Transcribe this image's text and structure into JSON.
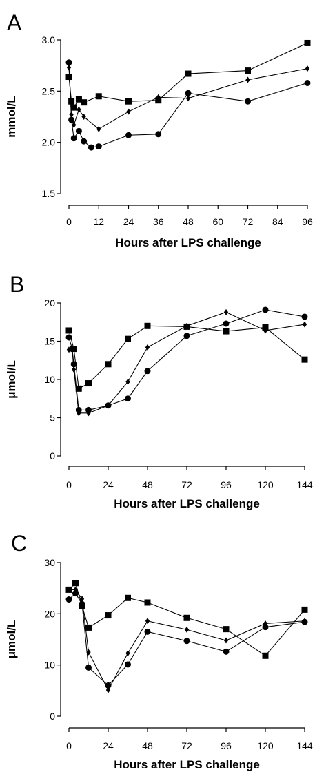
{
  "chart_data": [
    {
      "panel": "A",
      "type": "line",
      "xlabel": "Hours after LPS challenge",
      "ylabel": "mmol/L",
      "xlim": [
        0,
        96
      ],
      "ylim": [
        1.5,
        3.0
      ],
      "xticks": [
        0,
        12,
        24,
        36,
        48,
        60,
        72,
        84,
        96
      ],
      "yticks": [
        1.5,
        2.0,
        2.5,
        3.0
      ],
      "ytick_labels": [
        "1.5",
        "2.0",
        "2.5",
        "3.0"
      ],
      "grid": false,
      "series": [
        {
          "marker": "square",
          "x": [
            0,
            1,
            2,
            4,
            6,
            12,
            24,
            36,
            48,
            72,
            96
          ],
          "y": [
            2.64,
            2.4,
            2.34,
            2.42,
            2.39,
            2.45,
            2.4,
            2.41,
            2.67,
            2.7,
            2.97
          ]
        },
        {
          "marker": "diamond",
          "x": [
            0,
            1,
            2,
            4,
            6,
            12,
            24,
            36,
            48,
            72,
            96
          ],
          "y": [
            2.73,
            2.27,
            2.17,
            2.32,
            2.25,
            2.13,
            2.3,
            2.44,
            2.43,
            2.61,
            2.72
          ]
        },
        {
          "marker": "circle",
          "x": [
            0,
            1,
            2,
            4,
            6,
            9,
            12,
            24,
            36,
            48,
            72,
            96
          ],
          "y": [
            2.78,
            2.22,
            2.04,
            2.11,
            2.01,
            1.95,
            1.96,
            2.07,
            2.08,
            2.48,
            2.4,
            2.58
          ]
        }
      ]
    },
    {
      "panel": "B",
      "type": "line",
      "xlabel": "Hours after LPS challenge",
      "ylabel": "μmol/L",
      "xlim": [
        0,
        144
      ],
      "ylim": [
        0,
        20
      ],
      "xticks": [
        0,
        24,
        48,
        72,
        96,
        120,
        144
      ],
      "yticks": [
        0,
        5,
        10,
        15,
        20
      ],
      "ytick_labels": [
        "0",
        "5",
        "10",
        "15",
        "20"
      ],
      "grid": false,
      "series": [
        {
          "marker": "square",
          "x": [
            0,
            3,
            6,
            12,
            24,
            36,
            48,
            72,
            96,
            120,
            144
          ],
          "y": [
            16.4,
            14.0,
            8.8,
            9.5,
            12.0,
            15.3,
            17.0,
            16.9,
            16.3,
            16.8,
            12.6
          ]
        },
        {
          "marker": "diamond",
          "x": [
            0,
            2,
            3,
            6,
            12,
            24,
            36,
            48,
            72,
            96,
            120,
            144
          ],
          "y": [
            13.9,
            13.9,
            11.3,
            5.6,
            5.6,
            6.6,
            9.7,
            14.2,
            17.0,
            18.8,
            16.4,
            17.2
          ]
        },
        {
          "marker": "circle",
          "x": [
            0,
            2,
            3,
            6,
            12,
            24,
            36,
            48,
            72,
            96,
            120,
            144
          ],
          "y": [
            15.5,
            14.0,
            12.0,
            6.0,
            6.0,
            6.6,
            7.5,
            11.1,
            15.7,
            17.3,
            19.1,
            18.2
          ]
        }
      ]
    },
    {
      "panel": "C",
      "type": "line",
      "xlabel": "Hours after LPS challenge",
      "ylabel": "μmol/L",
      "xlim": [
        0,
        144
      ],
      "ylim": [
        0,
        30
      ],
      "xticks": [
        0,
        24,
        48,
        72,
        96,
        120,
        144
      ],
      "yticks": [
        0,
        10,
        20,
        30
      ],
      "ytick_labels": [
        "0",
        "10",
        "20",
        "30"
      ],
      "grid": false,
      "series": [
        {
          "marker": "square",
          "x": [
            0,
            4,
            8,
            12,
            24,
            36,
            48,
            72,
            96,
            120,
            144
          ],
          "y": [
            24.7,
            26.0,
            21.5,
            17.3,
            19.7,
            23.1,
            22.2,
            19.2,
            17.0,
            11.8,
            20.8
          ]
        },
        {
          "marker": "diamond",
          "x": [
            0,
            4,
            8,
            12,
            24,
            36,
            48,
            72,
            96,
            120,
            144
          ],
          "y": [
            24.7,
            24.7,
            22.9,
            12.5,
            5.1,
            12.3,
            18.6,
            16.9,
            14.8,
            18.1,
            18.6
          ]
        },
        {
          "marker": "circle",
          "x": [
            0,
            4,
            8,
            12,
            24,
            36,
            48,
            72,
            96,
            120,
            144
          ],
          "y": [
            22.8,
            24.0,
            21.9,
            9.5,
            6.0,
            10.1,
            16.5,
            14.7,
            12.6,
            17.4,
            18.4
          ]
        }
      ]
    }
  ]
}
